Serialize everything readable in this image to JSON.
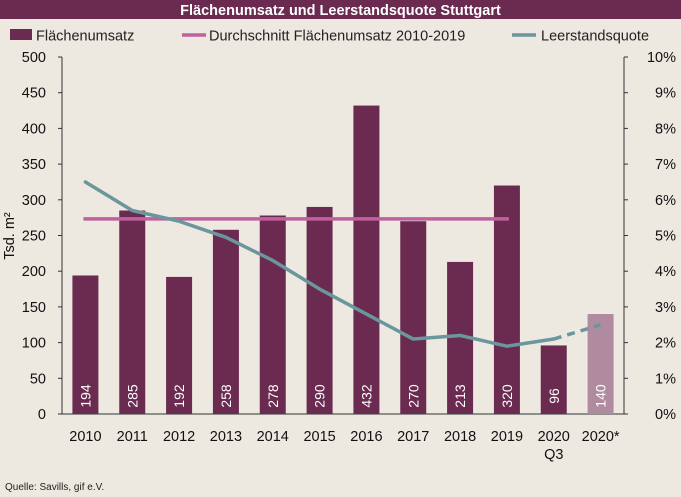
{
  "chart_data": {
    "type": "bar",
    "title": "Flächenumsatz und Leerstandsquote Stuttgart",
    "source": "Quelle: Savills, gif e.V.",
    "ylabel": "Tsd. m²",
    "ylim": [
      0,
      500
    ],
    "y_ticks": [
      "0",
      "50",
      "100",
      "150",
      "200",
      "250",
      "300",
      "350",
      "400",
      "450",
      "500"
    ],
    "y2lim": [
      0,
      10
    ],
    "y2_ticks": [
      "0%",
      "1%",
      "2%",
      "3%",
      "4%",
      "5%",
      "6%",
      "7%",
      "8%",
      "9%",
      "10%"
    ],
    "categories": [
      "2010",
      "2011",
      "2012",
      "2013",
      "2014",
      "2015",
      "2016",
      "2017",
      "2018",
      "2019",
      "2020\nQ3",
      "2020*"
    ],
    "series": [
      {
        "name": "Flächenumsatz",
        "type": "bar",
        "color": "#6b2a4f",
        "forecast_color": "#b08ba0",
        "values": [
          194,
          285,
          192,
          258,
          278,
          290,
          432,
          270,
          213,
          320,
          96,
          140
        ],
        "labels": [
          "194",
          "285",
          "192",
          "258",
          "278",
          "290",
          "432",
          "270",
          "213",
          "320",
          "96",
          "140"
        ]
      },
      {
        "name": "Durchschnitt Flächenumsatz 2010-2019",
        "type": "line",
        "color": "#c0609f",
        "value": 273.2,
        "range": [
          "2010",
          "2019"
        ]
      },
      {
        "name": "Leerstandsquote",
        "type": "line",
        "axis": "right",
        "color": "#6a969c",
        "values": [
          6.5,
          5.7,
          5.4,
          4.95,
          4.3,
          3.5,
          2.8,
          2.1,
          2.2,
          1.9,
          2.1,
          2.5
        ],
        "dashed_from": "2020\nQ3"
      }
    ],
    "grid": false,
    "legend": "top"
  }
}
